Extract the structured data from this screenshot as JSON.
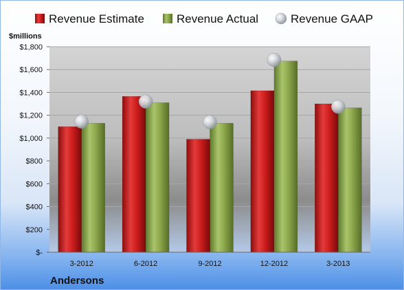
{
  "chart_data": {
    "type": "bar",
    "company": "Andersons",
    "y_unit": "$millions",
    "categories": [
      "3-2012",
      "6-2012",
      "9-2012",
      "12-2012",
      "3-2013"
    ],
    "series": [
      {
        "name": "Revenue Estimate",
        "kind": "bar",
        "color": "#cc1f1f",
        "values": [
          1100,
          1365,
          990,
          1415,
          1300
        ]
      },
      {
        "name": "Revenue Actual",
        "kind": "bar",
        "color": "#8ea84e",
        "values": [
          1130,
          1310,
          1130,
          1675,
          1265
        ]
      },
      {
        "name": "Revenue GAAP",
        "kind": "marker",
        "color": "#c8ccd2",
        "values": [
          1145,
          1320,
          1140,
          1685,
          1275
        ]
      }
    ],
    "ylim": [
      0,
      1800
    ],
    "yticks": [
      0,
      200,
      400,
      600,
      800,
      1000,
      1200,
      1400,
      1600,
      1800
    ],
    "ytick_labels": [
      "$-",
      "$200",
      "$400",
      "$600",
      "$800",
      "$1,000",
      "$1,200",
      "$1,400",
      "$1,600",
      "$1,800"
    ],
    "legend_position": "top",
    "grid": true
  }
}
